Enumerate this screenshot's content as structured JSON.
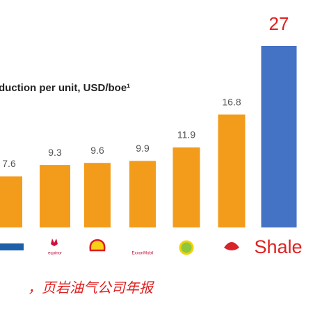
{
  "chart_data": {
    "type": "bar",
    "title": "duction per unit, USD/boe¹",
    "categories": [
      null,
      "equinor",
      null,
      "ExxonMobil",
      null,
      null,
      "Shale"
    ],
    "values": [
      7.6,
      9.3,
      9.6,
      9.9,
      11.9,
      16.8,
      27
    ],
    "colors": [
      "#f39c1b",
      "#f39c1b",
      "#f39c1b",
      "#f39c1b",
      "#f39c1b",
      "#f39c1b",
      "#4472c4"
    ],
    "ylim": [
      0,
      30
    ],
    "footnote": "，页岩油气公司年报"
  }
}
